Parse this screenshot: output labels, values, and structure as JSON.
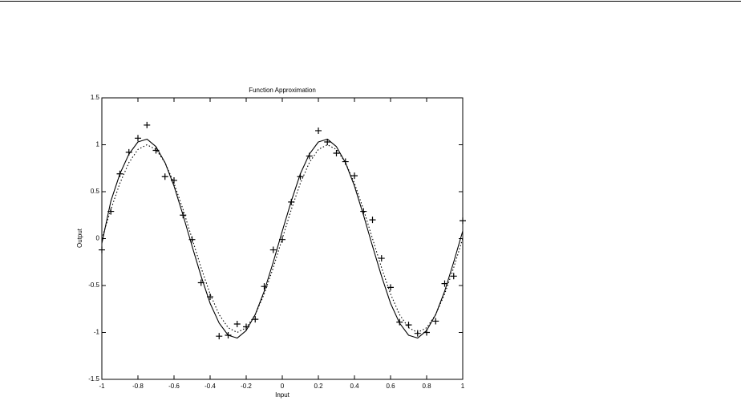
{
  "chart_data": {
    "type": "line",
    "title": "Function Approximation",
    "x_label": "Input",
    "y_label": "Output",
    "x": [
      -1,
      -0.95,
      -0.9,
      -0.85,
      -0.8,
      -0.75,
      -0.7,
      -0.65,
      -0.6,
      -0.55,
      -0.5,
      -0.45,
      -0.4,
      -0.35,
      -0.3,
      -0.25,
      -0.2,
      -0.15,
      -0.1,
      -0.05,
      0,
      0.05,
      0.1,
      0.15,
      0.2,
      0.25,
      0.3,
      0.35,
      0.4,
      0.45,
      0.5,
      0.55,
      0.6,
      0.65,
      0.7,
      0.75,
      0.8,
      0.85,
      0.9,
      0.95,
      1
    ],
    "series": [
      {
        "color": "#000000",
        "style": "plus",
        "values": [
          -0.12,
          0.29,
          0.69,
          0.92,
          1.07,
          1.21,
          0.94,
          0.66,
          0.62,
          0.25,
          -0.01,
          -0.47,
          -0.62,
          -1.04,
          -1.03,
          -0.91,
          -0.94,
          -0.86,
          -0.51,
          -0.12,
          -0.01,
          0.39,
          0.66,
          0.88,
          1.15,
          1.03,
          0.91,
          0.82,
          0.67,
          0.29,
          0.2,
          -0.21,
          -0.52,
          -0.89,
          -0.92,
          -1.01,
          -1.0,
          -0.88,
          -0.48,
          -0.4,
          0.19
        ]
      },
      {
        "color": "#000000",
        "style": "dotted",
        "values": [
          0,
          0.31,
          0.59,
          0.81,
          0.95,
          1,
          0.95,
          0.81,
          0.59,
          0.31,
          0,
          -0.31,
          -0.59,
          -0.81,
          -0.95,
          -1,
          -0.95,
          -0.81,
          -0.59,
          -0.31,
          0,
          0.31,
          0.59,
          0.81,
          0.95,
          1,
          0.95,
          0.81,
          0.59,
          0.31,
          0,
          -0.31,
          -0.59,
          -0.81,
          -0.95,
          -1,
          -0.95,
          -0.81,
          -0.59,
          -0.31,
          0
        ]
      },
      {
        "color": "#000000",
        "style": "solid",
        "values": [
          -0.05,
          0.4,
          0.69,
          0.9,
          1.03,
          1.06,
          0.98,
          0.81,
          0.56,
          0.25,
          -0.08,
          -0.4,
          -0.69,
          -0.9,
          -1.03,
          -1.06,
          -0.98,
          -0.81,
          -0.56,
          -0.25,
          0.08,
          0.4,
          0.69,
          0.9,
          1.03,
          1.06,
          0.98,
          0.81,
          0.56,
          0.25,
          -0.08,
          -0.4,
          -0.69,
          -0.9,
          -1.03,
          -1.06,
          -0.98,
          -0.81,
          -0.56,
          -0.25,
          0.08
        ]
      }
    ],
    "xlim": [
      -1,
      1
    ],
    "xticks": [
      -1,
      -0.8,
      -0.6,
      -0.4,
      -0.2,
      0,
      0.2,
      0.4,
      0.6,
      0.8,
      1
    ],
    "ylim": [
      -1.5,
      1.5
    ],
    "yticks": [
      -1.5,
      -1,
      -0.5,
      0,
      0.5,
      1,
      1.5
    ]
  }
}
